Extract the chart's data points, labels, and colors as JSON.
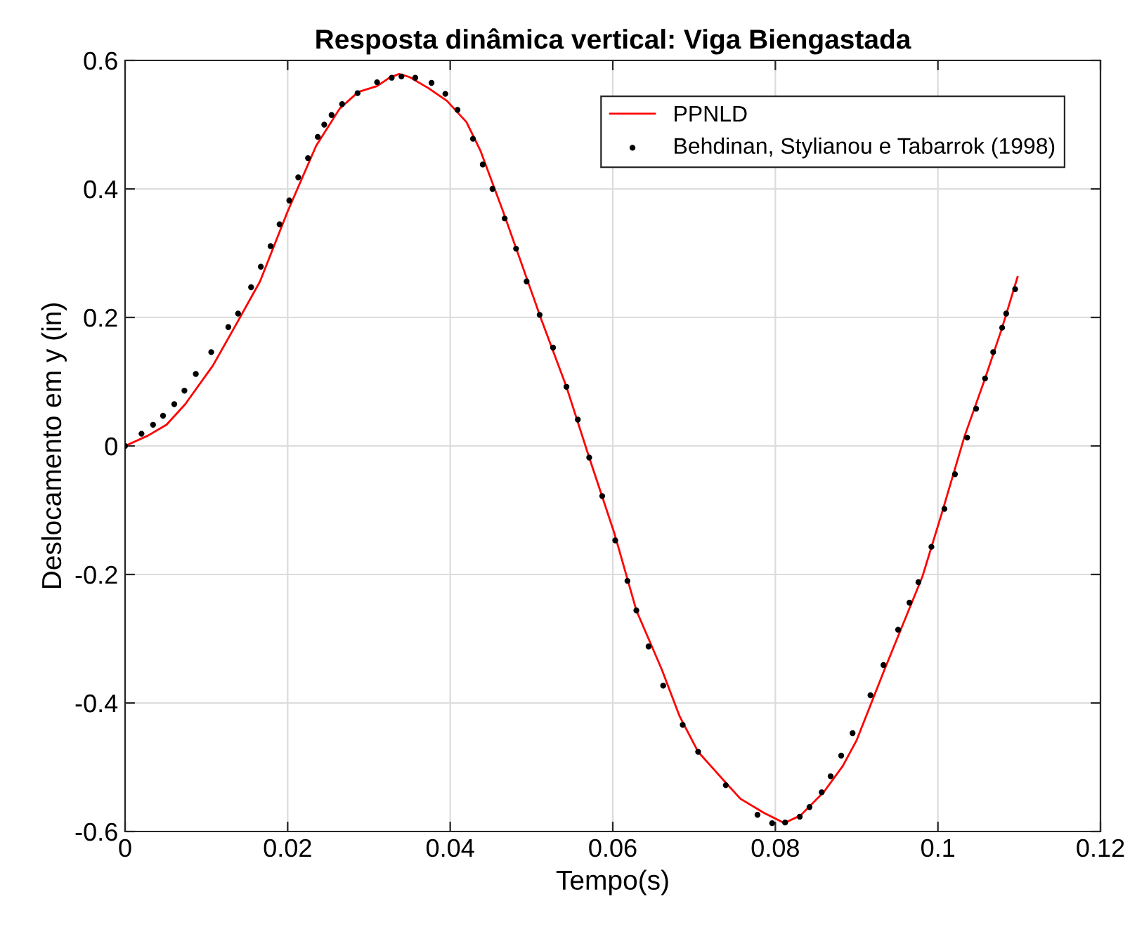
{
  "chart_data": {
    "type": "scatter",
    "title": "Resposta dinâmica vertical: Viga Biengastada",
    "xlabel": "Tempo(s)",
    "ylabel": "Deslocamento em y (in)",
    "xlim": [
      0,
      0.12
    ],
    "ylim": [
      -0.6,
      0.6
    ],
    "xticks": [
      0,
      0.02,
      0.04,
      0.06,
      0.08,
      0.1,
      0.12
    ],
    "yticks": [
      -0.6,
      -0.4,
      -0.2,
      0,
      0.2,
      0.4,
      0.6
    ],
    "grid": true,
    "legend": "top right",
    "series": [
      {
        "name": "PPNLD",
        "type": "line",
        "color": "#ff0000",
        "line_style": "solid",
        "marker": "none",
        "x": [
          0,
          0.0028,
          0.0051,
          0.0074,
          0.0108,
          0.0137,
          0.0166,
          0.02,
          0.0235,
          0.0264,
          0.0287,
          0.031,
          0.0324,
          0.0337,
          0.035,
          0.0373,
          0.0396,
          0.042,
          0.0437,
          0.0465,
          0.0512,
          0.0543,
          0.0571,
          0.0602,
          0.0629,
          0.066,
          0.0682,
          0.0705,
          0.0739,
          0.0757,
          0.0786,
          0.0811,
          0.0831,
          0.086,
          0.0883,
          0.09,
          0.0934,
          0.0981,
          0.1004,
          0.1033,
          0.1058,
          0.1079,
          0.1098
        ],
        "values": [
          0,
          0.016,
          0.033,
          0.065,
          0.125,
          0.19,
          0.256,
          0.365,
          0.467,
          0.525,
          0.551,
          0.56,
          0.572,
          0.579,
          0.574,
          0.557,
          0.537,
          0.504,
          0.46,
          0.365,
          0.197,
          0.092,
          -0.018,
          -0.136,
          -0.256,
          -0.347,
          -0.42,
          -0.476,
          -0.524,
          -0.549,
          -0.571,
          -0.587,
          -0.575,
          -0.538,
          -0.498,
          -0.458,
          -0.349,
          -0.203,
          -0.108,
          0.016,
          0.105,
          0.184,
          0.263
        ]
      },
      {
        "name": "Behdinan, Stylianou e Tabarrok (1998)",
        "color": "#000000",
        "marker": "circle",
        "x": [
          0,
          0.00202,
          0.00344,
          0.00467,
          0.00605,
          0.0073,
          0.0087,
          0.0106,
          0.0127,
          0.0139,
          0.0155,
          0.0167,
          0.0179,
          0.019,
          0.0202,
          0.0213,
          0.0225,
          0.0237,
          0.0245,
          0.0254,
          0.0267,
          0.0286,
          0.031,
          0.0328,
          0.034,
          0.0357,
          0.0377,
          0.0394,
          0.0409,
          0.0428,
          0.044,
          0.0452,
          0.0467,
          0.0481,
          0.0494,
          0.051,
          0.05265,
          0.0543,
          0.0557,
          0.0571,
          0.0587,
          0.0603,
          0.0618,
          0.0629,
          0.0644,
          0.0662,
          0.0686,
          0.0705,
          0.0739,
          0.0778,
          0.0796,
          0.0812,
          0.083,
          0.0842,
          0.0857,
          0.0868,
          0.0881,
          0.0895,
          0.0917,
          0.0933,
          0.0951,
          0.0965,
          0.0976,
          0.0992,
          0.1008,
          0.1021,
          0.1036,
          0.1047,
          0.1058,
          0.1068,
          0.1079,
          0.1084,
          0.1095
        ],
        "values": [
          0,
          0.019,
          0.033,
          0.047,
          0.065,
          0.086,
          0.112,
          0.146,
          0.185,
          0.206,
          0.247,
          0.279,
          0.311,
          0.345,
          0.382,
          0.418,
          0.448,
          0.481,
          0.5,
          0.515,
          0.532,
          0.549,
          0.566,
          0.573,
          0.575,
          0.573,
          0.565,
          0.548,
          0.523,
          0.478,
          0.438,
          0.4,
          0.354,
          0.307,
          0.256,
          0.204,
          0.153,
          0.092,
          0.041,
          -0.018,
          -0.078,
          -0.147,
          -0.21,
          -0.256,
          -0.312,
          -0.373,
          -0.434,
          -0.476,
          -0.528,
          -0.574,
          -0.587,
          -0.586,
          -0.577,
          -0.562,
          -0.539,
          -0.514,
          -0.482,
          -0.447,
          -0.388,
          -0.341,
          -0.286,
          -0.244,
          -0.212,
          -0.157,
          -0.098,
          -0.044,
          0.013,
          0.058,
          0.105,
          0.146,
          0.184,
          0.206,
          0.244
        ]
      }
    ]
  }
}
